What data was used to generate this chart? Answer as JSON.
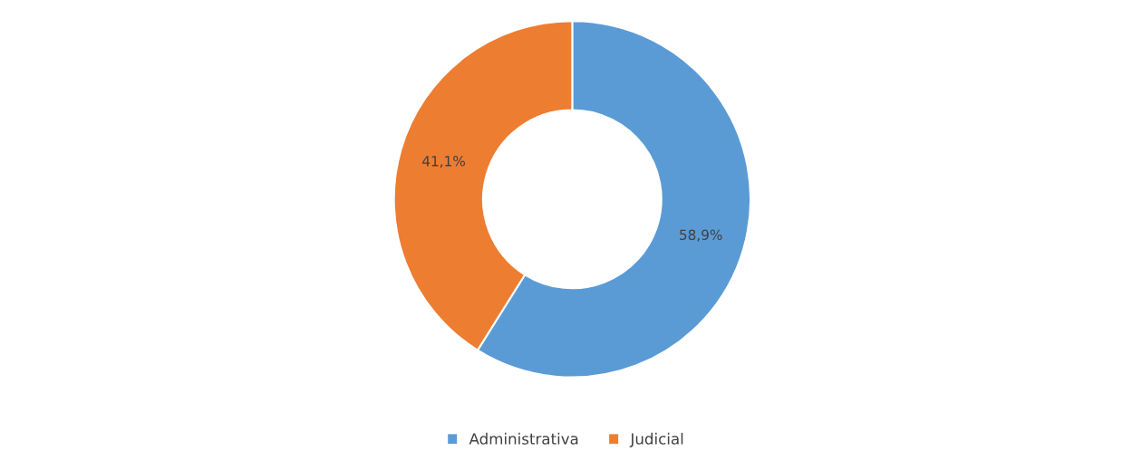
{
  "chart_data": {
    "type": "donut",
    "categories": [
      "Administrativa",
      "Judicial"
    ],
    "values": [
      58.9,
      41.1
    ],
    "value_labels": [
      "58,9%",
      "41,1%"
    ],
    "colors": [
      "#5b9bd5",
      "#ed7d31"
    ],
    "legend": "bottom"
  }
}
